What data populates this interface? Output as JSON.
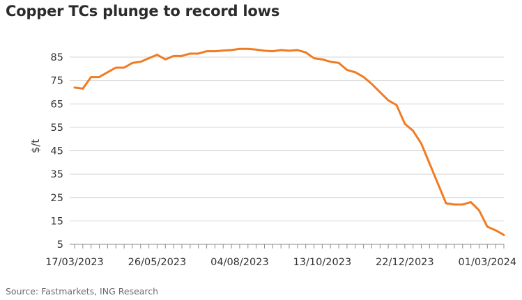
{
  "title": "Copper TCs plunge to record lows",
  "source": "Source: Fastmarkets, ING Research",
  "colors": {
    "line": "#f07b22",
    "grid": "#d4d4d4",
    "axis": "#8c8c8c",
    "text": "#333333",
    "source": "#6b6b6b"
  },
  "chart_data": {
    "type": "line",
    "title": "Copper TCs plunge to record lows",
    "xlabel": "",
    "ylabel": "$/t",
    "ylim": [
      5,
      85
    ],
    "yticks": [
      5,
      15,
      25,
      35,
      45,
      55,
      65,
      75,
      85
    ],
    "xtick_labels": [
      "17/03/2023",
      "26/05/2023",
      "04/08/2023",
      "13/10/2023",
      "22/12/2023",
      "01/03/2024"
    ],
    "grid": true,
    "legend": "none",
    "series": [
      {
        "x": [
          "17/03/2023",
          "24/03/2023",
          "31/03/2023",
          "07/04/2023",
          "14/04/2023",
          "21/04/2023",
          "28/04/2023",
          "05/05/2023",
          "12/05/2023",
          "19/05/2023",
          "26/05/2023",
          "02/06/2023",
          "09/06/2023",
          "16/06/2023",
          "23/06/2023",
          "30/06/2023",
          "07/07/2023",
          "14/07/2023",
          "21/07/2023",
          "28/07/2023",
          "04/08/2023",
          "11/08/2023",
          "18/08/2023",
          "25/08/2023",
          "01/09/2023",
          "08/09/2023",
          "15/09/2023",
          "22/09/2023",
          "29/09/2023",
          "06/10/2023",
          "13/10/2023",
          "20/10/2023",
          "27/10/2023",
          "03/11/2023",
          "10/11/2023",
          "17/11/2023",
          "24/11/2023",
          "01/12/2023",
          "08/12/2023",
          "15/12/2023",
          "22/12/2023",
          "29/12/2023",
          "05/01/2024",
          "12/01/2024",
          "19/01/2024",
          "26/01/2024",
          "02/02/2024",
          "09/02/2024",
          "16/02/2024",
          "23/02/2024",
          "01/03/2024",
          "08/03/2024",
          "15/03/2024"
        ],
        "values": [
          72,
          71.5,
          76.5,
          76.5,
          78.5,
          80.5,
          80.5,
          82.5,
          83,
          84.5,
          86,
          84,
          85.5,
          85.5,
          86.5,
          86.5,
          87.5,
          87.5,
          87.8,
          88,
          88.5,
          88.5,
          88.2,
          87.7,
          87.5,
          88,
          87.7,
          88,
          87,
          84.5,
          84,
          83,
          82.5,
          79.5,
          78.5,
          76.5,
          73.5,
          70,
          66.5,
          64.5,
          56.5,
          53.5,
          48,
          39.5,
          31,
          22.5,
          22,
          22,
          23,
          19.5,
          12.5,
          11,
          9
        ]
      }
    ]
  }
}
